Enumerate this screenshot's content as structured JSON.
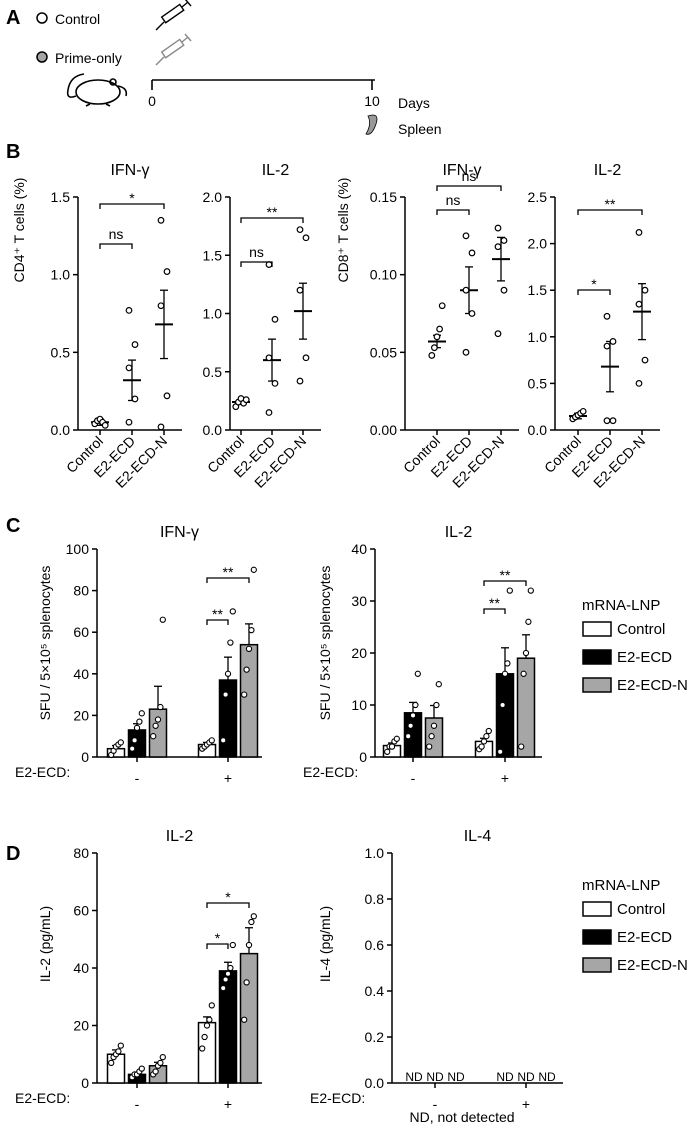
{
  "panelA": {
    "letter": "A",
    "legend": [
      "Control",
      "Prime-only"
    ],
    "ticks": [
      "0",
      "10"
    ],
    "days_label": "Days",
    "organ_label": "Spleen"
  },
  "panelB": {
    "letter": "B",
    "categories": [
      "Control",
      "E2-ECD",
      "E2-ECD-N"
    ],
    "ylabels": [
      "CD4⁺ T cells (%)",
      "CD8⁺ T cells (%)"
    ]
  },
  "panelC": {
    "letter": "C",
    "ylabel": "SFU / 5×10⁵ splenocytes",
    "legend_title": "mRNA-LNP",
    "legend": [
      "Control",
      "E2-ECD",
      "E2-ECD-N"
    ],
    "treat_label": "E2-ECD:",
    "treat_values": [
      "-",
      "+"
    ]
  },
  "panelD": {
    "letter": "D",
    "ylabels": [
      "IL-2 (pg/mL)",
      "IL-4 (pg/mL)"
    ],
    "legend_title": "mRNA-LNP",
    "legend": [
      "Control",
      "E2-ECD",
      "E2-ECD-N"
    ],
    "treat_label": "E2-ECD:",
    "treat_values": [
      "-",
      "+"
    ],
    "nd_mark": "ND",
    "footnote": "ND, not detected"
  },
  "colors": {
    "control": "#ffffff",
    "e2_ecd": "#000000",
    "e2_ecd_n": "#a6a6a6"
  },
  "chart_data": [
    {
      "type": "scatter",
      "panel": "B",
      "title": "IFN-γ",
      "ylabel": "CD4⁺ T cells (%)",
      "categories": [
        "Control",
        "E2-ECD",
        "E2-ECD-N"
      ],
      "ylim": [
        0,
        1.5
      ],
      "yticks": [
        "0.0",
        "0.5",
        "1.0",
        "1.5"
      ],
      "means": [
        0.05,
        0.32,
        0.68
      ],
      "errors": [
        0.02,
        0.13,
        0.22
      ],
      "points": [
        [
          0.04,
          0.06,
          0.07,
          0.05,
          0.03
        ],
        [
          0.05,
          0.2,
          0.4,
          0.55,
          0.77
        ],
        [
          0.02,
          0.22,
          0.8,
          1.02,
          1.35
        ]
      ],
      "brackets": [
        {
          "from": 0,
          "to": 2,
          "label": "*"
        },
        {
          "from": 0,
          "to": 1,
          "label": "ns"
        }
      ]
    },
    {
      "type": "scatter",
      "panel": "B",
      "title": "IL-2",
      "ylabel": "",
      "categories": [
        "Control",
        "E2-ECD",
        "E2-ECD-N"
      ],
      "ylim": [
        0,
        2.0
      ],
      "yticks": [
        "0.0",
        "0.5",
        "1.0",
        "1.5",
        "2.0"
      ],
      "means": [
        0.24,
        0.6,
        1.02
      ],
      "errors": [
        0.02,
        0.18,
        0.24
      ],
      "points": [
        [
          0.2,
          0.24,
          0.27,
          0.23,
          0.26
        ],
        [
          0.15,
          0.4,
          0.62,
          0.95,
          1.42
        ],
        [
          0.42,
          0.62,
          1.2,
          1.65,
          1.72
        ]
      ],
      "brackets": [
        {
          "from": 0,
          "to": 2,
          "label": "**"
        },
        {
          "from": 0,
          "to": 1,
          "label": "ns"
        }
      ]
    },
    {
      "type": "scatter",
      "panel": "B",
      "title": "IFN-γ",
      "ylabel": "CD8⁺ T cells (%)",
      "categories": [
        "Control",
        "E2-ECD",
        "E2-ECD-N"
      ],
      "ylim": [
        0,
        0.15
      ],
      "yticks": [
        "0.00",
        "0.05",
        "0.10",
        "0.15"
      ],
      "means": [
        0.057,
        0.09,
        0.11
      ],
      "errors": [
        0.004,
        0.015,
        0.014
      ],
      "points": [
        [
          0.048,
          0.053,
          0.06,
          0.065,
          0.08
        ],
        [
          0.05,
          0.075,
          0.09,
          0.114,
          0.125
        ],
        [
          0.062,
          0.09,
          0.118,
          0.122,
          0.13
        ]
      ],
      "brackets": [
        {
          "from": 0,
          "to": 2,
          "label": "ns"
        },
        {
          "from": 0,
          "to": 1,
          "label": "ns"
        }
      ]
    },
    {
      "type": "scatter",
      "panel": "B",
      "title": "IL-2",
      "ylabel": "",
      "categories": [
        "Control",
        "E2-ECD",
        "E2-ECD-N"
      ],
      "ylim": [
        0,
        2.5
      ],
      "yticks": [
        "0.0",
        "0.5",
        "1.0",
        "1.5",
        "2.0",
        "2.5"
      ],
      "means": [
        0.15,
        0.68,
        1.27
      ],
      "errors": [
        0.03,
        0.27,
        0.3
      ],
      "points": [
        [
          0.12,
          0.14,
          0.16,
          0.18,
          0.2
        ],
        [
          0.1,
          0.1,
          0.9,
          0.95,
          1.22
        ],
        [
          0.5,
          0.75,
          1.35,
          1.5,
          2.12
        ]
      ],
      "brackets": [
        {
          "from": 0,
          "to": 2,
          "label": "**"
        },
        {
          "from": 0,
          "to": 1,
          "label": "*"
        }
      ]
    },
    {
      "type": "bar",
      "panel": "C",
      "title": "IFN-γ",
      "ylabel": "SFU / 5×10⁵ splenocytes",
      "groups": [
        "-",
        "+"
      ],
      "series": [
        "Control",
        "E2-ECD",
        "E2-ECD-N"
      ],
      "ylim": [
        0,
        100
      ],
      "yticks": [
        "0",
        "20",
        "40",
        "60",
        "80",
        "100"
      ],
      "values": [
        [
          4,
          13,
          23
        ],
        [
          6,
          37,
          54
        ]
      ],
      "errors": [
        [
          1.5,
          3,
          11
        ],
        [
          1,
          11,
          10
        ]
      ],
      "points": [
        [
          [
            1,
            3,
            5,
            6,
            7
          ],
          [
            4,
            8,
            14,
            17,
            21
          ],
          [
            10,
            15,
            18,
            24,
            66
          ]
        ],
        [
          [
            4,
            5,
            6,
            7,
            8
          ],
          [
            8,
            30,
            40,
            55,
            70
          ],
          [
            30,
            42,
            52,
            61,
            90
          ]
        ]
      ],
      "brackets": [
        {
          "group": 1,
          "from": 0,
          "to": 1,
          "label": "**"
        },
        {
          "group": 1,
          "from": 0,
          "to": 2,
          "label": "**"
        }
      ]
    },
    {
      "type": "bar",
      "panel": "C",
      "title": "IL-2",
      "ylabel": "SFU / 5×10⁵ splenocytes",
      "groups": [
        "-",
        "+"
      ],
      "series": [
        "Control",
        "E2-ECD",
        "E2-ECD-N"
      ],
      "ylim": [
        0,
        40
      ],
      "yticks": [
        "0",
        "10",
        "20",
        "30",
        "40"
      ],
      "values": [
        [
          2.2,
          8.5,
          7.5
        ],
        [
          3,
          16,
          19
        ]
      ],
      "errors": [
        [
          0.5,
          2,
          2.4
        ],
        [
          0.6,
          5,
          4.5
        ]
      ],
      "points": [
        [
          [
            1,
            2,
            2,
            3,
            3.5
          ],
          [
            4,
            6,
            8,
            10,
            16
          ],
          [
            2,
            4,
            6,
            10,
            14
          ]
        ],
        [
          [
            1.5,
            2,
            3,
            4,
            5
          ],
          [
            1,
            10,
            16,
            18,
            32
          ],
          [
            2,
            16,
            20,
            26,
            32
          ]
        ]
      ],
      "brackets": [
        {
          "group": 1,
          "from": 0,
          "to": 1,
          "label": "**"
        },
        {
          "group": 1,
          "from": 0,
          "to": 2,
          "label": "**"
        }
      ]
    },
    {
      "type": "bar",
      "panel": "D",
      "title": "IL-2",
      "ylabel": "IL-2 (pg/mL)",
      "groups": [
        "-",
        "+"
      ],
      "series": [
        "Control",
        "E2-ECD",
        "E2-ECD-N"
      ],
      "ylim": [
        0,
        80
      ],
      "yticks": [
        "0",
        "20",
        "40",
        "60",
        "80"
      ],
      "values": [
        [
          10,
          3,
          6
        ],
        [
          21,
          39,
          45
        ]
      ],
      "errors": [
        [
          1.5,
          0.6,
          1.2
        ],
        [
          2,
          3,
          9
        ]
      ],
      "points": [
        [
          [
            7,
            9,
            10,
            11,
            13
          ],
          [
            2,
            3,
            3,
            4,
            5
          ],
          [
            3,
            4,
            6,
            7,
            9
          ]
        ],
        [
          [
            12,
            16,
            20,
            22,
            27
          ],
          [
            33,
            36,
            38,
            40,
            48
          ],
          [
            22,
            35,
            48,
            56,
            58
          ]
        ]
      ],
      "brackets": [
        {
          "group": 1,
          "from": 0,
          "to": 1,
          "label": "*"
        },
        {
          "group": 1,
          "from": 0,
          "to": 2,
          "label": "*"
        }
      ]
    },
    {
      "type": "bar",
      "panel": "D",
      "title": "IL-4",
      "ylabel": "IL-4 (pg/mL)",
      "groups": [
        "-",
        "+"
      ],
      "series": [
        "Control",
        "E2-ECD",
        "E2-ECD-N"
      ],
      "ylim": [
        0,
        1.0
      ],
      "yticks": [
        "0.0",
        "0.2",
        "0.4",
        "0.6",
        "0.8",
        "1.0"
      ],
      "values": [
        [
          0,
          0,
          0
        ],
        [
          0,
          0,
          0
        ]
      ],
      "not_detected": true
    }
  ]
}
